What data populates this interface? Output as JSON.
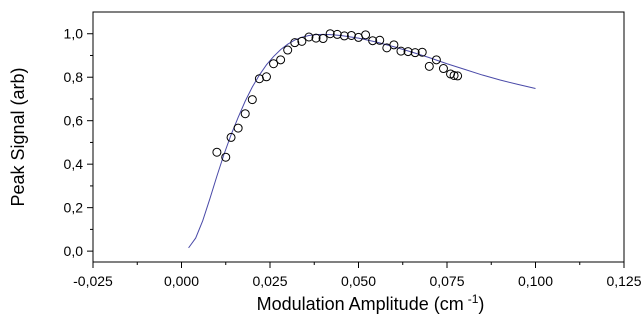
{
  "chart_data": {
    "type": "scatter",
    "title": "",
    "xlabel": "Modulation Amplitude (cm",
    "xlabel_sup": "-1",
    "xlabel_close": ")",
    "ylabel": "Peak Signal (arb)",
    "xlim": [
      -0.025,
      0.125
    ],
    "ylim": [
      -0.05,
      1.1
    ],
    "xticks": [
      -0.025,
      0.0,
      0.025,
      0.05,
      0.075,
      0.1,
      0.125
    ],
    "xtick_labels": [
      "-0,025",
      "0,000",
      "0,025",
      "0,050",
      "0,075",
      "0,100",
      "0,125"
    ],
    "yticks": [
      0.0,
      0.2,
      0.4,
      0.6,
      0.8,
      1.0
    ],
    "ytick_labels": [
      "0,0",
      "0,2",
      "0,4",
      "0,6",
      "0,8",
      "1,0"
    ],
    "grid": false,
    "legend": "none",
    "series": [
      {
        "kind": "points",
        "marker": "open-circle",
        "color": "#000000",
        "points": [
          [
            0.01,
            0.455
          ],
          [
            0.0125,
            0.432
          ],
          [
            0.014,
            0.523
          ],
          [
            0.016,
            0.566
          ],
          [
            0.018,
            0.632
          ],
          [
            0.02,
            0.697
          ],
          [
            0.022,
            0.793
          ],
          [
            0.024,
            0.802
          ],
          [
            0.026,
            0.862
          ],
          [
            0.028,
            0.88
          ],
          [
            0.03,
            0.925
          ],
          [
            0.032,
            0.959
          ],
          [
            0.034,
            0.965
          ],
          [
            0.036,
            0.985
          ],
          [
            0.038,
            0.98
          ],
          [
            0.04,
            0.978
          ],
          [
            0.042,
            1.0
          ],
          [
            0.044,
            0.997
          ],
          [
            0.046,
            0.99
          ],
          [
            0.048,
            0.992
          ],
          [
            0.05,
            0.983
          ],
          [
            0.052,
            0.995
          ],
          [
            0.054,
            0.968
          ],
          [
            0.056,
            0.97
          ],
          [
            0.058,
            0.935
          ],
          [
            0.06,
            0.949
          ],
          [
            0.062,
            0.92
          ],
          [
            0.064,
            0.918
          ],
          [
            0.066,
            0.913
          ],
          [
            0.068,
            0.915
          ],
          [
            0.07,
            0.85
          ],
          [
            0.072,
            0.88
          ],
          [
            0.074,
            0.84
          ],
          [
            0.076,
            0.815
          ],
          [
            0.077,
            0.808
          ],
          [
            0.078,
            0.806
          ]
        ]
      },
      {
        "kind": "fit-line",
        "color": "#4a4aa8",
        "points": [
          [
            0.002,
            0.015
          ],
          [
            0.004,
            0.06
          ],
          [
            0.006,
            0.14
          ],
          [
            0.008,
            0.24
          ],
          [
            0.01,
            0.345
          ],
          [
            0.012,
            0.445
          ],
          [
            0.014,
            0.535
          ],
          [
            0.016,
            0.615
          ],
          [
            0.018,
            0.69
          ],
          [
            0.02,
            0.755
          ],
          [
            0.022,
            0.81
          ],
          [
            0.024,
            0.857
          ],
          [
            0.026,
            0.895
          ],
          [
            0.028,
            0.927
          ],
          [
            0.03,
            0.952
          ],
          [
            0.032,
            0.971
          ],
          [
            0.034,
            0.984
          ],
          [
            0.036,
            0.992
          ],
          [
            0.038,
            0.996
          ],
          [
            0.04,
            0.997
          ],
          [
            0.042,
            0.996
          ],
          [
            0.045,
            0.992
          ],
          [
            0.05,
            0.98
          ],
          [
            0.055,
            0.962
          ],
          [
            0.06,
            0.94
          ],
          [
            0.065,
            0.916
          ],
          [
            0.07,
            0.89
          ],
          [
            0.075,
            0.862
          ],
          [
            0.08,
            0.836
          ],
          [
            0.085,
            0.81
          ],
          [
            0.09,
            0.787
          ],
          [
            0.095,
            0.767
          ],
          [
            0.1,
            0.748
          ]
        ]
      }
    ]
  }
}
